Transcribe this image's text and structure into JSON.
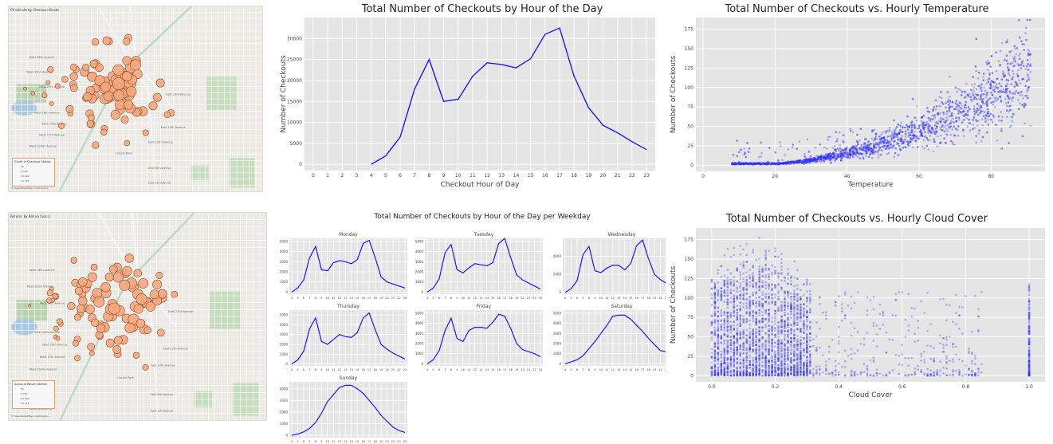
{
  "maps": [
    {
      "title": "Checkouts by Checkout Kiosks",
      "legend_title": "Count of Checkout Station",
      "legend_items": [
        "56",
        "5,000",
        "10,000",
        "13,793"
      ],
      "credit": "© OpenStreetMap contributors",
      "marker_color": "#f6a77d",
      "street_labels": [
        "West 38th Avenue",
        "West 32nd Avenue",
        "West 29th Avenue",
        "West 26th Avenue",
        "East 23rd Avenue",
        "West 20th Avenue",
        "West 17th Avenue",
        "East 17th Avenue",
        "West Colfax Avenue",
        "East 13th Avenue",
        "West 8th Avenue",
        "East 8th Avenue",
        "West 1st Avenue",
        "East 1st Avenue",
        "Lincoln Park"
      ]
    },
    {
      "title": "Returns by Return Kiosks",
      "legend_title": "Count of Return Station",
      "legend_items": [
        "56",
        "5,000",
        "10,000",
        "13,793"
      ],
      "credit": "© OpenStreetMap contributors",
      "marker_color": "#f6a77d",
      "street_labels": [
        "West 38th Avenue",
        "West 32nd Avenue",
        "West 29th Avenue",
        "West 26th Avenue",
        "East 23rd Avenue",
        "West 20th Avenue",
        "West 17th Avenue",
        "East 17th Avenue",
        "West Colfax Avenue",
        "East 13th Avenue",
        "West 8th Avenue",
        "East 8th Avenue",
        "West 1st Avenue",
        "East 1st Avenue",
        "Lincoln Park"
      ]
    }
  ],
  "line_color": "#1a1aff",
  "scatter_color": "#3333ff",
  "chart_data": [
    {
      "type": "line",
      "title": "Total Number of Checkouts by Hour of the Day",
      "xlabel": "Checkout Hour of Day",
      "ylabel": "Number of Checkouts",
      "x": [
        4,
        5,
        6,
        7,
        8,
        9,
        10,
        11,
        12,
        13,
        14,
        15,
        16,
        17,
        18,
        19,
        20,
        21,
        22,
        23
      ],
      "y": [
        0,
        2000,
        6500,
        18000,
        25000,
        15000,
        15500,
        21000,
        24200,
        23800,
        23000,
        25200,
        31000,
        32500,
        21000,
        13500,
        9300,
        7500,
        5400,
        3500
      ],
      "xticks": [
        "0",
        "1",
        "2",
        "3",
        "4",
        "5",
        "6",
        "7",
        "8",
        "9",
        "10",
        "11",
        "12",
        "13",
        "14",
        "15",
        "16",
        "17",
        "18",
        "19",
        "20",
        "21",
        "22",
        "23"
      ],
      "yticks": [
        "0",
        "5000",
        "10000",
        "15000",
        "20000",
        "25000",
        "30000"
      ],
      "xlim": [
        0,
        23
      ],
      "ylim": [
        -1500,
        35000
      ],
      "grid": true
    },
    {
      "type": "scatter",
      "title": "Total Number of Checkouts vs. Hourly Temperature",
      "xlabel": "Temperature",
      "ylabel": "Number of Checkouts",
      "xlim": [
        -2,
        95
      ],
      "ylim": [
        -8,
        190
      ],
      "xticks": [
        "0",
        "20",
        "40",
        "60",
        "80"
      ],
      "yticks": [
        "0",
        "25",
        "50",
        "75",
        "100",
        "125",
        "150",
        "175"
      ],
      "grid": true,
      "note": "approximately 7000 points; counts increase with temperature"
    },
    {
      "type": "line",
      "title": "Total Number of Checkouts by Hour of the Day per Weekday",
      "xticks": [
        "4",
        "5",
        "6",
        "7",
        "8",
        "9",
        "10",
        "11",
        "12",
        "13",
        "14",
        "15",
        "16",
        "17",
        "18",
        "19",
        "20",
        "21",
        "22",
        "23"
      ],
      "grid": true,
      "x": [
        4,
        5,
        6,
        7,
        8,
        9,
        10,
        11,
        12,
        13,
        14,
        15,
        16,
        17,
        18,
        19,
        20,
        21,
        22,
        23
      ],
      "panels": [
        {
          "name": "Monday",
          "yticks": [
            "0",
            "1000",
            "2000",
            "3000",
            "4000",
            "5000"
          ],
          "ylim": [
            -200,
            5300
          ],
          "values": [
            0,
            400,
            1200,
            3400,
            4500,
            2200,
            2100,
            2900,
            3100,
            3000,
            2800,
            3200,
            4800,
            5100,
            3400,
            1500,
            1000,
            800,
            600,
            400
          ]
        },
        {
          "name": "Tuesday",
          "yticks": [
            "0",
            "1000",
            "2000",
            "3000",
            "4000",
            "5000"
          ],
          "ylim": [
            -200,
            5300
          ],
          "values": [
            0,
            400,
            1300,
            3900,
            4700,
            2200,
            1900,
            2400,
            2800,
            2700,
            2600,
            2900,
            4800,
            5300,
            3400,
            1700,
            1200,
            900,
            600,
            300
          ]
        },
        {
          "name": "Wednesday",
          "yticks": [
            "0",
            "2000",
            "4000"
          ],
          "ylim": [
            -200,
            6000
          ],
          "values": [
            0,
            400,
            1300,
            4200,
            5100,
            2400,
            2200,
            2700,
            3000,
            3000,
            2500,
            3200,
            5200,
            5800,
            3700,
            2000,
            1400,
            1000,
            700,
            400
          ]
        },
        {
          "name": "Thursday",
          "yticks": [
            "0",
            "1000",
            "2000",
            "3000",
            "4000",
            "5000"
          ],
          "ylim": [
            -200,
            5500
          ],
          "values": [
            0,
            400,
            1300,
            3600,
            4700,
            2300,
            2000,
            2500,
            3000,
            2800,
            2700,
            3200,
            4700,
            5200,
            3500,
            2000,
            1500,
            1100,
            800,
            500
          ]
        },
        {
          "name": "Friday",
          "yticks": [
            "0",
            "1000",
            "2000",
            "3000",
            "4000",
            "5000"
          ],
          "ylim": [
            -200,
            5300
          ],
          "values": [
            0,
            400,
            1300,
            3300,
            4500,
            2500,
            2200,
            3300,
            3600,
            3600,
            3500,
            4100,
            4900,
            4700,
            3500,
            2000,
            1400,
            1200,
            1000,
            700
          ]
        },
        {
          "name": "Saturday",
          "yticks": [
            "0",
            "1000",
            "2000",
            "3000",
            "4000",
            "5000"
          ],
          "ylim": [
            -200,
            5300
          ],
          "values": [
            0,
            200,
            400,
            800,
            1500,
            2200,
            3000,
            3800,
            4700,
            4800,
            4800,
            4400,
            3800,
            3200,
            2500,
            1900,
            1300,
            1200,
            900,
            700
          ]
        },
        {
          "name": "Sunday",
          "yticks": [
            "0",
            "1000",
            "2000",
            "3000",
            "4000"
          ],
          "ylim": [
            -200,
            4600
          ],
          "values": [
            0,
            100,
            300,
            600,
            1100,
            1900,
            2900,
            3500,
            4100,
            4300,
            4300,
            4000,
            3600,
            3000,
            2400,
            1700,
            1200,
            700,
            400,
            250
          ]
        }
      ]
    },
    {
      "type": "scatter",
      "title": "Total Number of Checkouts vs. Hourly Cloud Cover",
      "xlabel": "Cloud Cover",
      "ylabel": "Number of Checkouts",
      "xlim": [
        -0.05,
        1.05
      ],
      "ylim": [
        -8,
        190
      ],
      "xticks": [
        "0.0",
        "0.2",
        "0.4",
        "0.6",
        "0.8",
        "1.0"
      ],
      "yticks": [
        "0",
        "25",
        "50",
        "75",
        "100",
        "125",
        "150",
        "175"
      ],
      "grid": true,
      "note": "dense vertical columns at cloud cover 0.0–0.31, sparse beyond, column at 1.0"
    }
  ]
}
